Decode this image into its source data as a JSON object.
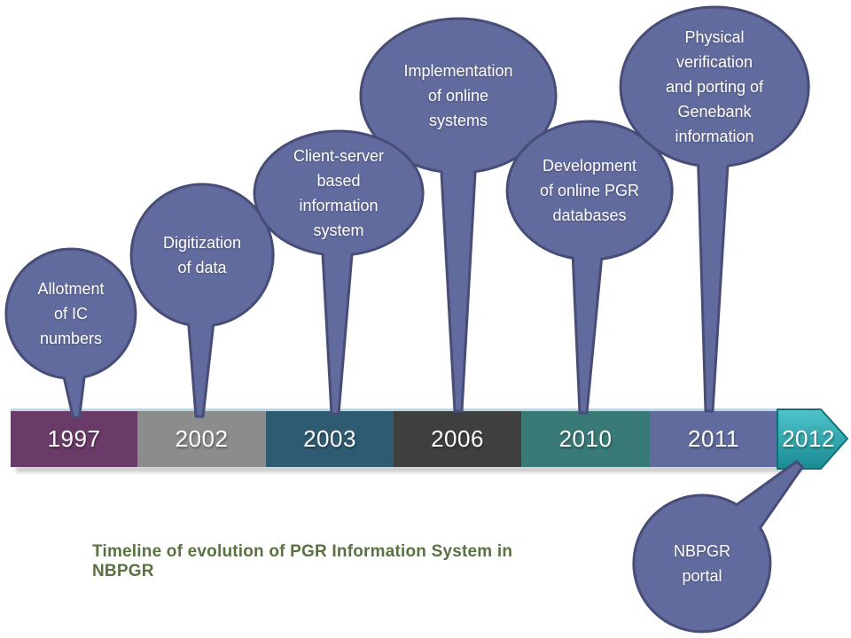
{
  "title_caption": {
    "text": "Timeline of evolution of PGR Information System in NBPGR",
    "color": "#5a7140"
  },
  "timeline": {
    "segments": [
      {
        "year": "1997",
        "color": "#6a3a68"
      },
      {
        "year": "2002",
        "color": "#8c8c8c"
      },
      {
        "year": "2003",
        "color": "#2f5b72"
      },
      {
        "year": "2006",
        "color": "#3f3f3f"
      },
      {
        "year": "2010",
        "color": "#397a77"
      },
      {
        "year": "2011",
        "color": "#626b9d"
      }
    ],
    "arrow": {
      "year": "2012",
      "color_top": "#4fc4ca",
      "color_bottom": "#1b8a93",
      "border": "#0e7079"
    },
    "top_edge_color": "#b5d9e6"
  },
  "balloons": [
    {
      "label": "Allotment\nof IC\nnumbers",
      "points_to": "1997"
    },
    {
      "label": "Digitization\nof data",
      "points_to": "2002"
    },
    {
      "label": "Client-server\nbased\ninformation\nsystem",
      "points_to": "2003"
    },
    {
      "label": "Implementation\nof online\nsystems",
      "points_to": "2006"
    },
    {
      "label": "Development\nof online PGR\ndatabases",
      "points_to": "2010"
    },
    {
      "label": "Physical\nverification\nand porting of\nGenebank\ninformation",
      "points_to": "2011"
    },
    {
      "label": "NBPGR\nportal",
      "points_to": "2012"
    }
  ],
  "colors": {
    "balloon_fill": "#626b9d",
    "balloon_border": "#484d78",
    "balloon_text": "#ffffff",
    "year_text": "#ffffff"
  }
}
